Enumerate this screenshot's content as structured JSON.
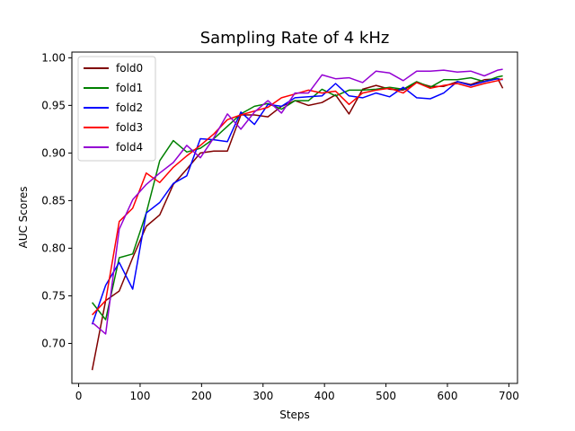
{
  "chart_data": {
    "type": "line",
    "title": "Sampling Rate of 4 kHz",
    "xlabel": "Steps",
    "ylabel": "AUC Scores",
    "xlim": [
      -11,
      714
    ],
    "ylim": [
      0.658,
      1.006
    ],
    "xticks": [
      0,
      100,
      200,
      300,
      400,
      500,
      600,
      700
    ],
    "xtick_labels": [
      "0",
      "100",
      "200",
      "300",
      "400",
      "500",
      "600",
      "700"
    ],
    "yticks": [
      0.7,
      0.75,
      0.8,
      0.85,
      0.9,
      0.95,
      1.0
    ],
    "ytick_labels": [
      "0.70",
      "0.75",
      "0.80",
      "0.85",
      "0.90",
      "0.95",
      "1.00"
    ],
    "legend_position": "upper-left",
    "grid": false,
    "x": [
      22,
      44,
      66,
      88,
      110,
      132,
      154,
      176,
      198,
      220,
      242,
      264,
      286,
      308,
      330,
      352,
      374,
      396,
      418,
      440,
      462,
      484,
      506,
      528,
      550,
      572,
      594,
      616,
      638,
      660,
      682,
      690
    ],
    "series": [
      {
        "name": "fold0",
        "color": "#800000",
        "values": [
          0.672,
          0.745,
          0.755,
          0.79,
          0.823,
          0.835,
          0.867,
          0.883,
          0.9,
          0.902,
          0.902,
          0.94,
          0.94,
          0.938,
          0.949,
          0.955,
          0.95,
          0.953,
          0.961,
          0.941,
          0.967,
          0.971,
          0.967,
          0.966,
          0.974,
          0.97,
          0.97,
          0.975,
          0.972,
          0.977,
          0.978,
          0.968
        ]
      },
      {
        "name": "fold1",
        "color": "#008000",
        "values": [
          0.743,
          0.725,
          0.79,
          0.794,
          0.837,
          0.892,
          0.913,
          0.901,
          0.905,
          0.915,
          0.928,
          0.941,
          0.949,
          0.952,
          0.946,
          0.955,
          0.955,
          0.967,
          0.96,
          0.966,
          0.966,
          0.967,
          0.969,
          0.967,
          0.975,
          0.969,
          0.977,
          0.977,
          0.979,
          0.975,
          0.98,
          0.981
        ]
      },
      {
        "name": "fold2",
        "color": "#0000ff",
        "values": [
          0.72,
          0.761,
          0.785,
          0.757,
          0.837,
          0.848,
          0.868,
          0.876,
          0.915,
          0.914,
          0.912,
          0.943,
          0.93,
          0.951,
          0.949,
          0.958,
          0.959,
          0.96,
          0.973,
          0.96,
          0.958,
          0.963,
          0.959,
          0.969,
          0.958,
          0.957,
          0.963,
          0.975,
          0.971,
          0.975,
          0.978,
          0.977
        ]
      },
      {
        "name": "fold3",
        "color": "#ff0000",
        "values": [
          0.73,
          0.745,
          0.828,
          0.842,
          0.879,
          0.869,
          0.885,
          0.897,
          0.908,
          0.92,
          0.935,
          0.94,
          0.944,
          0.948,
          0.958,
          0.962,
          0.966,
          0.963,
          0.965,
          0.951,
          0.963,
          0.966,
          0.968,
          0.963,
          0.974,
          0.968,
          0.971,
          0.973,
          0.969,
          0.973,
          0.976,
          0.978
        ]
      },
      {
        "name": "fold4",
        "color": "#9400d3",
        "values": [
          0.722,
          0.71,
          0.82,
          0.851,
          0.867,
          0.879,
          0.89,
          0.908,
          0.895,
          0.916,
          0.941,
          0.925,
          0.943,
          0.955,
          0.942,
          0.963,
          0.963,
          0.982,
          0.978,
          0.979,
          0.974,
          0.986,
          0.984,
          0.976,
          0.986,
          0.986,
          0.987,
          0.985,
          0.986,
          0.981,
          0.987,
          0.988
        ]
      }
    ]
  }
}
